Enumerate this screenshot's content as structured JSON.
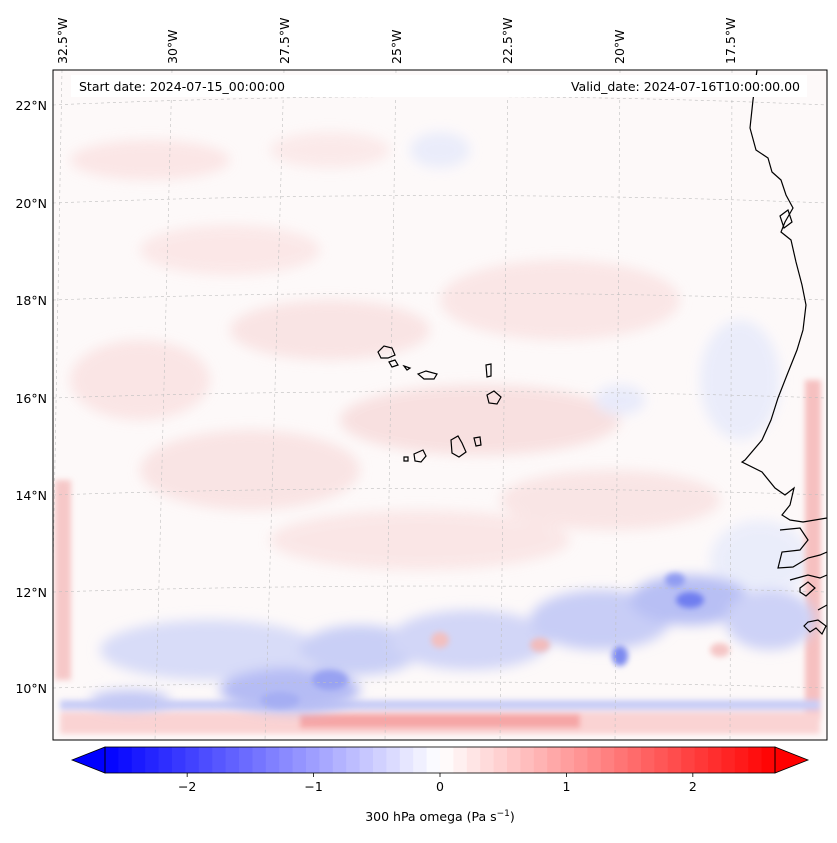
{
  "map": {
    "start_date_label": "Start date: 2024-07-15_00:00:00",
    "valid_date_label": "Valid_date: 2024-07-16T10:00:00.00",
    "lon_labels": [
      "32.5°W",
      "30°W",
      "27.5°W",
      "25°W",
      "22.5°W",
      "20°W",
      "17.5°W"
    ],
    "lat_labels": [
      "22°N",
      "20°N",
      "18°N",
      "16°N",
      "14°N",
      "12°N",
      "10°N"
    ],
    "field": "300 hPa omega",
    "units": "Pa s⁻¹"
  },
  "colorbar": {
    "ticks": [
      "−2",
      "−1",
      "0",
      "1",
      "2"
    ],
    "label_main": "300 hPa omega (Pa s",
    "label_exp": "−1",
    "label_end": ")",
    "vmin": -2.65,
    "vmax": 2.65,
    "color_low": "#0000ff",
    "color_mid": "#ffffff",
    "color_high": "#ff0000"
  }
}
